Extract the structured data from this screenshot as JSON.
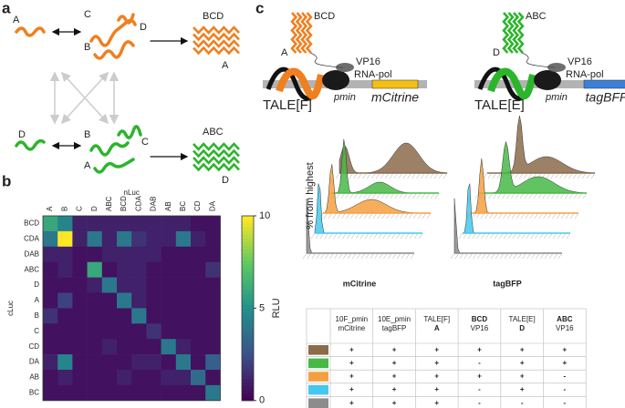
{
  "panel_labels": [
    "a",
    "b",
    "c"
  ],
  "diagram_a": {
    "top": {
      "labels": [
        "A",
        "C",
        "B",
        "D"
      ],
      "product": "BCD",
      "product_sub": "A"
    },
    "bottom": {
      "labels": [
        "D",
        "B",
        "A",
        "C"
      ],
      "product": "ABC",
      "product_sub": "D"
    }
  },
  "heatmap": {
    "x_title": "nLuc",
    "y_title": "cLuc",
    "columns": [
      "A",
      "B",
      "C",
      "D",
      "ABC",
      "BCD",
      "CDA",
      "DAB",
      "AB",
      "BC",
      "CD",
      "DA"
    ],
    "rows": [
      "BCD",
      "CDA",
      "DAB",
      "ABC",
      "D",
      "A",
      "B",
      "C",
      "CD",
      "DA",
      "AB",
      "BC"
    ],
    "values": [
      [
        6,
        4.5,
        1,
        1,
        1,
        1,
        1,
        1,
        1,
        1,
        0.5,
        0.5
      ],
      [
        4,
        10,
        1,
        4,
        1,
        4,
        1.5,
        1,
        1,
        4,
        1,
        0.5
      ],
      [
        1,
        1,
        0.5,
        0.5,
        1,
        1,
        1,
        1,
        0.5,
        0.5,
        0.5,
        0.5
      ],
      [
        0.5,
        1,
        0.5,
        6,
        0.5,
        1,
        1,
        0.5,
        0.5,
        0.5,
        0.5,
        1.5
      ],
      [
        0.5,
        0.5,
        0.5,
        1,
        4,
        1,
        1,
        0.5,
        0.5,
        0.5,
        0.5,
        0.5
      ],
      [
        0.5,
        2,
        0.5,
        0.5,
        0.5,
        4,
        1,
        0.5,
        0.5,
        0.5,
        0.5,
        0.5
      ],
      [
        1.5,
        0.5,
        0.5,
        0.5,
        0.5,
        0.5,
        4,
        0.5,
        0.5,
        0.5,
        0.5,
        0.5
      ],
      [
        0.5,
        0.5,
        0.5,
        0.5,
        0.5,
        0.5,
        0.5,
        1.5,
        0.5,
        0.5,
        0.5,
        0.5
      ],
      [
        0.5,
        0.5,
        0.5,
        0.5,
        1,
        0.5,
        0.5,
        0.5,
        4,
        1,
        0.5,
        0.5
      ],
      [
        1,
        4.5,
        0.5,
        0.5,
        0.5,
        0.5,
        1,
        1,
        0.5,
        4,
        0.5,
        3
      ],
      [
        0.5,
        1,
        0.5,
        0.5,
        0.5,
        1,
        0.5,
        0.5,
        1,
        1,
        3.5,
        0.5
      ],
      [
        0.5,
        0.5,
        0.5,
        0.5,
        0.5,
        0.5,
        0.5,
        0.5,
        0.5,
        0.5,
        0.5,
        4
      ]
    ],
    "colorbar": {
      "label": "RLU",
      "lim": [
        0,
        10
      ],
      "ticks": [
        0,
        5,
        10
      ]
    }
  },
  "constructs": [
    {
      "tale": "TALE[F]",
      "promoter": "pmin",
      "reporter": "mCitrine",
      "reporter_color": "#f2c014",
      "helix_color": "#f07f1f",
      "dimer": "BCD",
      "monomer": "A",
      "activator": "VP16",
      "polymerase": "RNA-pol"
    },
    {
      "tale": "TALE[E]",
      "promoter": "pmin",
      "reporter": "tagBFP",
      "reporter_color": "#3b7fd9",
      "helix_color": "#2bb52b",
      "dimer": "ABC",
      "monomer": "D",
      "activator": "VP16",
      "polymerase": "RNA-pol"
    }
  ],
  "histograms": {
    "y_title": "% from highest",
    "x_titles": [
      "mCitrine",
      "tagBFP"
    ]
  },
  "table": {
    "header": [
      [
        "10F_pmin",
        "mCitrine"
      ],
      [
        "10E_pmin",
        "tagBFP"
      ],
      [
        "TALE[F]",
        "A"
      ],
      [
        "BCD",
        "VP16"
      ],
      [
        "TALE[E]",
        "D"
      ],
      [
        "ABC",
        "VP16"
      ]
    ],
    "rows": [
      {
        "color": "#8b6b4b",
        "cells": [
          "+",
          "+",
          "+",
          "+",
          "+",
          "+"
        ]
      },
      {
        "color": "#46b846",
        "cells": [
          "+",
          "+",
          "+",
          "-",
          "+",
          "+"
        ]
      },
      {
        "color": "#f5a040",
        "cells": [
          "+",
          "+",
          "+",
          "+",
          "+",
          "-"
        ]
      },
      {
        "color": "#45c8ef",
        "cells": [
          "+",
          "+",
          "+",
          "-",
          "+",
          "-"
        ]
      },
      {
        "color": "#8c8c8c",
        "cells": [
          "+",
          "+",
          "+",
          "-",
          "-",
          "-"
        ]
      }
    ]
  }
}
